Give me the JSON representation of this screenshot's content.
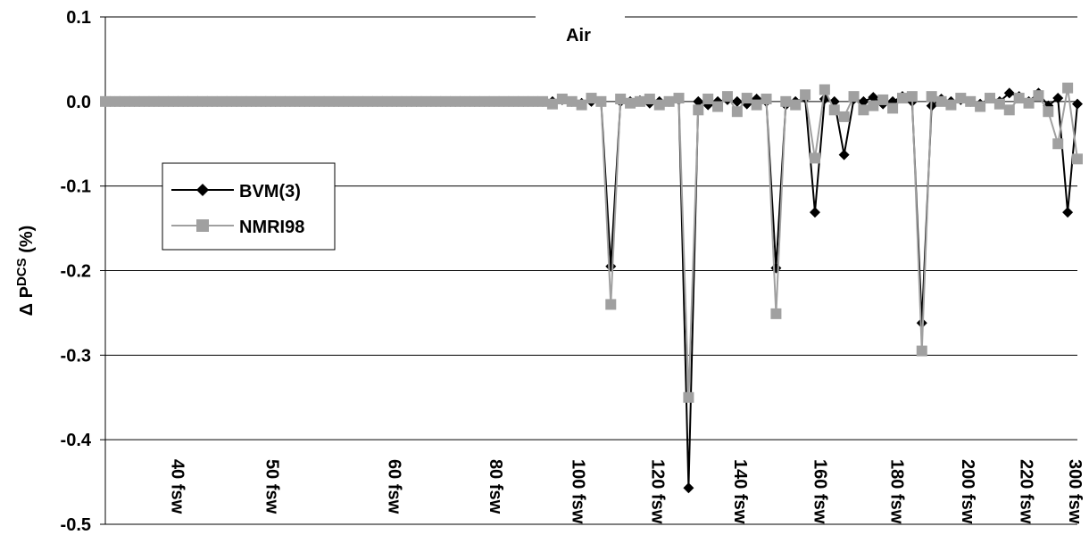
{
  "chart_data": {
    "type": "line",
    "title": "Air",
    "ylabel": {
      "base": "Δ P",
      "sup": "DCS",
      "tail": " (%)"
    },
    "xlim": [
      0,
      100
    ],
    "xticks": [
      {
        "value": 7.5,
        "label": "40 fsw"
      },
      {
        "value": 17.2,
        "label": "50 fsw"
      },
      {
        "value": 29.8,
        "label": "60 fsw"
      },
      {
        "value": 40.2,
        "label": "80 fsw"
      },
      {
        "value": 48.7,
        "label": "100 fsw"
      },
      {
        "value": 56.9,
        "label": "120 fsw"
      },
      {
        "value": 65.4,
        "label": "140 fsw"
      },
      {
        "value": 73.6,
        "label": "160 fsw"
      },
      {
        "value": 81.5,
        "label": "180 fsw"
      },
      {
        "value": 88.8,
        "label": "200 fsw"
      },
      {
        "value": 94.8,
        "label": "220 fsw"
      },
      {
        "value": 99.8,
        "label": "300 fsw"
      }
    ],
    "ylim": [
      -0.5,
      0.1
    ],
    "yticks": [
      0.1,
      {
        "value": 0,
        "label": "0.0"
      },
      -0.1,
      -0.2,
      -0.3,
      -0.4,
      -0.5
    ],
    "grid": true,
    "x": [
      0,
      1,
      2,
      3,
      4,
      5,
      6,
      7,
      8,
      9,
      10,
      11,
      12,
      13,
      14,
      15,
      16,
      17,
      18,
      19,
      20,
      21,
      22,
      23,
      24,
      25,
      26,
      27,
      28,
      29,
      30,
      31,
      32,
      33,
      34,
      35,
      36,
      37,
      38,
      39,
      40,
      41,
      42,
      43,
      44,
      45,
      46,
      47,
      48,
      49,
      50,
      51,
      52,
      53,
      54,
      55,
      56,
      57,
      58,
      59,
      60,
      61,
      62,
      63,
      64,
      65,
      66,
      67,
      68,
      69,
      70,
      71,
      72,
      73,
      74,
      75,
      76,
      77,
      78,
      79,
      80,
      81,
      82,
      83,
      84,
      85,
      86,
      87,
      88,
      89,
      90,
      91,
      92,
      93,
      94,
      95,
      96,
      97,
      98,
      99,
      100
    ],
    "series": [
      {
        "name": "BVM(3)",
        "color": "#000000",
        "marker": "diamond",
        "values": [
          0,
          0,
          0,
          0,
          0,
          0,
          0,
          0,
          0,
          0,
          0,
          0,
          0,
          0,
          0,
          0,
          0,
          0,
          0,
          0,
          0,
          0,
          0,
          0,
          0,
          0,
          0,
          0,
          0,
          0,
          0,
          0,
          0,
          0,
          0,
          0,
          0,
          0,
          0,
          0,
          0,
          0,
          0,
          0,
          0,
          0,
          0,
          0.002,
          0,
          -0.002,
          0,
          0,
          -0.195,
          0,
          0,
          0.001,
          -0.002,
          0,
          0,
          0.002,
          -0.457,
          0,
          -0.004,
          0,
          0.002,
          0,
          -0.003,
          0.003,
          0,
          -0.197,
          -0.004,
          0,
          0.004,
          -0.131,
          0.003,
          0,
          -0.063,
          0.003,
          0,
          0.005,
          -0.003,
          0,
          0.006,
          0,
          -0.262,
          -0.005,
          0.003,
          0,
          0.002,
          0,
          -0.003,
          0.004,
          0,
          0.01,
          0.006,
          0,
          0.01,
          -0.005,
          0.004,
          -0.131,
          -0.003
        ]
      },
      {
        "name": "NMRI98",
        "color": "#a0a0a0",
        "marker": "square",
        "values": [
          0,
          0,
          0,
          0,
          0,
          0,
          0,
          0,
          0,
          0,
          0,
          0,
          0,
          0,
          0,
          0,
          0,
          0,
          0,
          0,
          0,
          0,
          0,
          0,
          0,
          0,
          0,
          0,
          0,
          0,
          0,
          0,
          0,
          0,
          0,
          0,
          0,
          0,
          0,
          0,
          0,
          0,
          0,
          0,
          0,
          0,
          -0.003,
          0.003,
          0,
          -0.004,
          0.004,
          0,
          -0.24,
          0.003,
          -0.002,
          0,
          0.003,
          -0.004,
          0,
          0.004,
          -0.35,
          -0.01,
          0.003,
          -0.006,
          0.006,
          -0.012,
          0.004,
          -0.004,
          0.003,
          -0.251,
          0,
          -0.004,
          0.008,
          -0.067,
          0.014,
          -0.01,
          -0.018,
          0.006,
          -0.01,
          -0.005,
          0.002,
          -0.008,
          0.004,
          0.006,
          -0.295,
          0.006,
          0,
          -0.004,
          0.004,
          0,
          -0.006,
          0.004,
          -0.003,
          -0.01,
          0.004,
          -0.002,
          0.007,
          -0.012,
          -0.05,
          0.016,
          -0.068
        ]
      }
    ]
  }
}
